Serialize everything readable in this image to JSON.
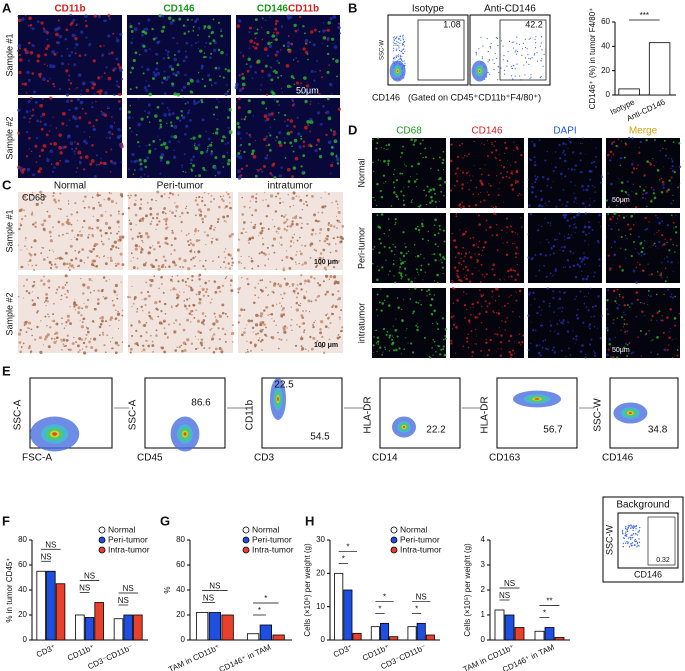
{
  "panel_labels": [
    "A",
    "B",
    "C",
    "D",
    "E",
    "F",
    "G",
    "H"
  ],
  "panel_a": {
    "markers": [
      "CD11b",
      "CD146"
    ],
    "merge": [
      "CD146",
      "CD11b"
    ],
    "rows": [
      "Sample #1",
      "Sample #2"
    ],
    "scale_bar": "50μm"
  },
  "panel_b": {
    "plots": [
      {
        "title": "Isotype",
        "gate_value": 1.08
      },
      {
        "title": "Anti-CD146",
        "gate_value": 42.2
      }
    ],
    "y_label": "SSC-W",
    "x_label": "CD146",
    "gate_note": "(Gated on CD45⁺CD11b⁺F4/80⁺)",
    "chart": {
      "type": "bar",
      "y_label": "CD146⁺ (%) in tumor F4/80⁺",
      "categories": [
        "Isotype",
        "Anti-CD146"
      ],
      "values": [
        5,
        43
      ],
      "color": "#ffffff",
      "ylim": [
        0,
        60
      ],
      "yticks": [
        0,
        20,
        40,
        60
      ],
      "annotations": [
        "***"
      ]
    }
  },
  "panel_c": {
    "stain": "CD68",
    "columns": [
      "Normal",
      "Peri-tumor",
      "intratumor"
    ],
    "rows": [
      "Sample #1",
      "Sample #2"
    ],
    "scale_bar": "100 μm"
  },
  "panel_d": {
    "columns": [
      "CD68",
      "CD146",
      "DAPI",
      "Merge"
    ],
    "rows": [
      "Normal",
      "Peri-tumor",
      "intratumor"
    ],
    "scale_bar": "50μm"
  },
  "panel_e": {
    "plots": [
      {
        "y_label": "SSC-A",
        "x_label": "FSC-A",
        "gate_values": []
      },
      {
        "y_label": "SSC-A",
        "x_label": "CD45",
        "gate_values": [
          86.6
        ]
      },
      {
        "y_label": "CD11b",
        "x_label": "CD3",
        "gate_values": [
          22.5,
          54.5
        ]
      },
      {
        "y_label": "HLA-DR",
        "x_label": "CD14",
        "gate_values": [
          22.2
        ]
      },
      {
        "y_label": "HLA-DR",
        "x_label": "CD163",
        "gate_values": [
          56.7
        ]
      },
      {
        "y_label": "SSC-W",
        "x_label": "CD146",
        "gate_values": [
          34.8
        ]
      }
    ],
    "background": {
      "title": "Background",
      "gate_value": 0.32,
      "y_label": "SSC-W",
      "x_label": "CD146"
    }
  },
  "panel_f": {
    "type": "bar",
    "y_label": "% in tumor CD45⁺",
    "categories": [
      "CD3⁺",
      "CD11b⁺",
      "CD3⁻CD11b⁻"
    ],
    "ylim": [
      0,
      80
    ],
    "yticks": [
      0,
      20,
      40,
      60,
      80
    ],
    "legend": true,
    "series": [
      {
        "name": "Normal",
        "color": "#ffffff",
        "values": [
          55,
          20,
          17
        ]
      },
      {
        "name": "Peri-tumor",
        "color": "#1f4fe0",
        "values": [
          55,
          18,
          20
        ]
      },
      {
        "name": "Intra-tumor",
        "color": "#e8402a",
        "values": [
          45,
          30,
          20
        ]
      }
    ],
    "annotations": [
      "NS",
      "NS",
      "NS",
      "NS",
      "NS",
      "NS"
    ]
  },
  "panel_g": {
    "type": "bar",
    "y_label": "%",
    "categories": [
      "TAM in CD11b⁺",
      "CD146⁺ in TAM"
    ],
    "ylim": [
      0,
      80
    ],
    "yticks": [
      0,
      20,
      40,
      60,
      80
    ],
    "legend": true,
    "series": [
      {
        "name": "Normal",
        "color": "#ffffff",
        "values": [
          22,
          5
        ]
      },
      {
        "name": "Peri-tumor",
        "color": "#1f4fe0",
        "values": [
          22,
          12
        ]
      },
      {
        "name": "Intra-tumor",
        "color": "#e8402a",
        "values": [
          20,
          4
        ]
      }
    ],
    "annotations": [
      "NS",
      "NS",
      "*",
      "*"
    ]
  },
  "panel_h": [
    {
      "type": "bar",
      "y_label": "Cells (×10⁶) per weight (g)",
      "categories": [
        "CD3⁺",
        "CD11b⁺",
        "CD3⁻CD11b⁻"
      ],
      "ylim": [
        0,
        30
      ],
      "yticks": [
        0,
        10,
        20,
        30
      ],
      "legend": true,
      "series": [
        {
          "name": "Normal",
          "color": "#ffffff",
          "values": [
            20,
            4,
            4
          ]
        },
        {
          "name": "Peri-tumor",
          "color": "#1f4fe0",
          "values": [
            15,
            5,
            5
          ]
        },
        {
          "name": "Intra-tumor",
          "color": "#e8402a",
          "values": [
            2,
            1,
            1.5
          ]
        }
      ],
      "annotations": [
        "*",
        "*",
        "*",
        "*",
        "NS",
        "*"
      ]
    },
    {
      "type": "bar",
      "y_label": "Cells (×10⁵) per weight (g)",
      "categories": [
        "TAM in CD11b⁺",
        "CD146⁺ in TAM"
      ],
      "ylim": [
        0,
        4
      ],
      "yticks": [
        0,
        1,
        2,
        3,
        4
      ],
      "legend": false,
      "series": [
        {
          "color": "#ffffff",
          "values": [
            1.2,
            0.35
          ]
        },
        {
          "color": "#1f4fe0",
          "values": [
            1,
            0.5
          ]
        },
        {
          "color": "#e8402a",
          "values": [
            0.5,
            0.1
          ]
        }
      ],
      "annotations": [
        "NS",
        "NS",
        "**",
        "*"
      ]
    }
  ]
}
